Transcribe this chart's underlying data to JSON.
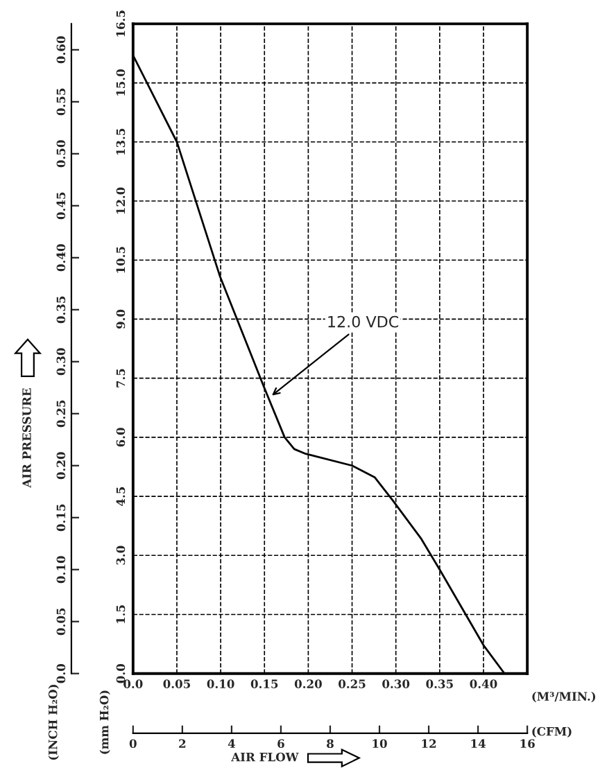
{
  "chart_data": {
    "type": "line",
    "xlabel": "(M³/MIN.)",
    "x2label": "(CFM)",
    "ylabel": "(mm H₂O)",
    "y2label": "(INCH H₂O)",
    "annotations": [
      {
        "text": "12.0 VDC",
        "x": 0.155,
        "y": 7.0
      },
      "AIR PRESSURE",
      "AIR FLOW"
    ],
    "series": [
      {
        "color": "#000000",
        "x": [
          0.0,
          0.05,
          0.099,
          0.149,
          0.173,
          0.184,
          0.197,
          0.25,
          0.276,
          0.297,
          0.329,
          0.35,
          0.4,
          0.424
        ],
        "values": [
          15.7,
          13.5,
          10.1,
          7.3,
          6.0,
          5.7,
          5.58,
          5.28,
          4.98,
          4.38,
          3.42,
          2.64,
          0.72,
          0.0
        ]
      }
    ],
    "xlim": [
      0,
      0.45
    ],
    "xticks": [
      {
        "value": 0.0,
        "label": "0.0"
      },
      0.05,
      {
        "value": 0.1,
        "label": "0.10"
      },
      0.15,
      {
        "value": 0.2,
        "label": "0.20"
      },
      0.25,
      {
        "value": 0.3,
        "label": "0.30"
      },
      0.35,
      {
        "value": 0.4,
        "label": "0.40"
      }
    ],
    "ylim": [
      0,
      16.5
    ],
    "yticks": [
      {
        "value": 0,
        "label": "0.0"
      },
      1.5,
      {
        "value": 3,
        "label": "3.0"
      },
      4.5,
      {
        "value": 6,
        "label": "6.0"
      },
      7.5,
      {
        "value": 9,
        "label": "9.0"
      },
      10.5,
      {
        "value": 12,
        "label": "12.0"
      },
      13.5,
      {
        "value": 15,
        "label": "15.0"
      },
      16.5
    ],
    "y2lim": [
      0,
      0.625
    ],
    "y2ticks": [
      {
        "value": 0.0,
        "label": "0.0"
      },
      0.05,
      {
        "value": 0.1,
        "label": "0.10"
      },
      0.15,
      {
        "value": 0.2,
        "label": "0.20"
      },
      0.25,
      {
        "value": 0.3,
        "label": "0.30"
      },
      0.35,
      {
        "value": 0.4,
        "label": "0.40"
      },
      0.45,
      {
        "value": 0.5,
        "label": "0.50"
      },
      0.55,
      {
        "value": 0.6,
        "label": "0.60"
      }
    ],
    "x2lim": [
      0,
      16
    ],
    "x2ticks": [
      0,
      2,
      4,
      6,
      8,
      10,
      12,
      14,
      16
    ],
    "grid": true,
    "line_style": "solid"
  }
}
